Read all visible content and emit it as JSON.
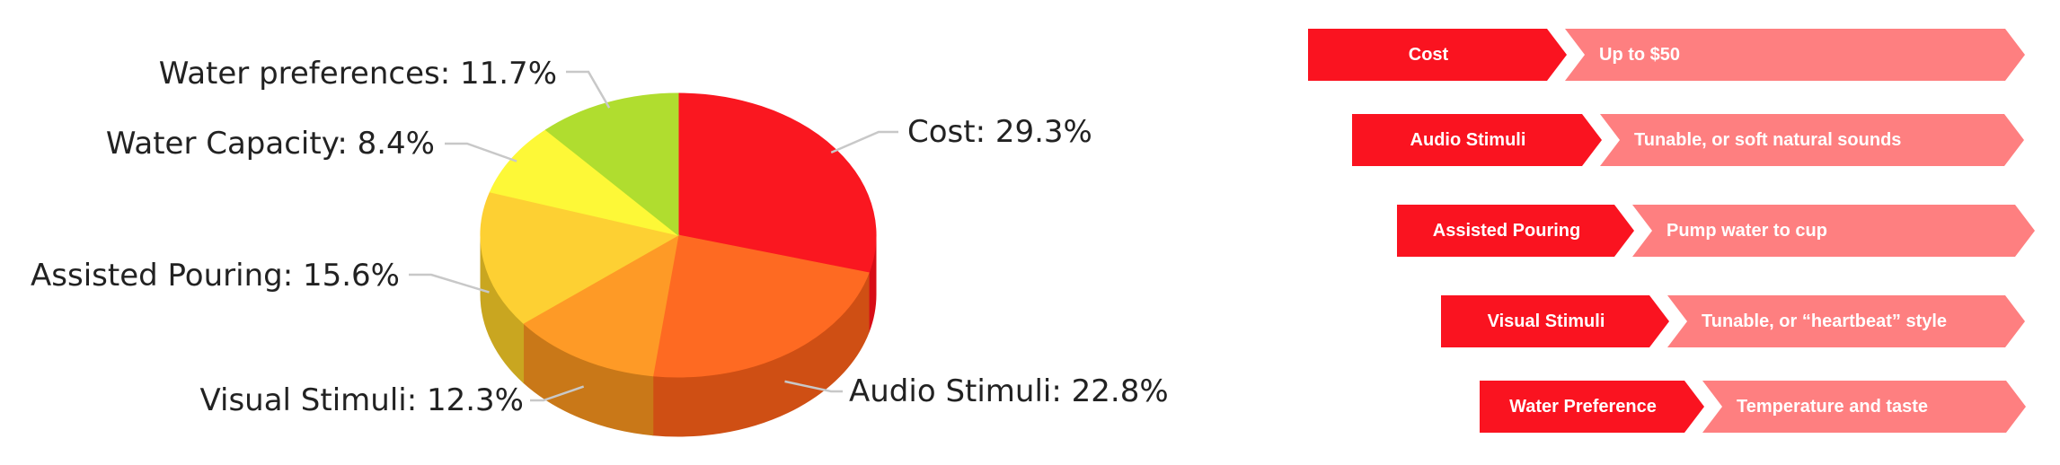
{
  "chart_data": {
    "type": "pie",
    "title": "",
    "slices": [
      {
        "label": "Cost",
        "value": 29.3,
        "display": "Cost: 29.3%",
        "color": "#fa1720",
        "side": "#d80c16"
      },
      {
        "label": "Audio Stimuli",
        "value": 22.8,
        "display": "Audio Stimuli: 22.8%",
        "color": "#fe6a22",
        "side": "#cf4f14"
      },
      {
        "label": "Visual Stimuli",
        "value": 12.3,
        "display": "Visual Stimuli: 12.3%",
        "color": "#fe9a26",
        "side": "#c97818"
      },
      {
        "label": "Assisted Pouring",
        "value": 15.6,
        "display": "Assisted Pouring: 15.6%",
        "color": "#fdd033",
        "side": "#c9a620"
      },
      {
        "label": "Water Capacity",
        "value": 8.4,
        "display": "Water Capacity: 8.4%",
        "color": "#fdf837",
        "side": "#cfcb22"
      },
      {
        "label": "Water preferences",
        "value": 11.7,
        "display": "Water preferences: 11.7%",
        "color": "#b0dd2f",
        "side": "#8eb31e"
      }
    ]
  },
  "requirements": [
    {
      "label": "Cost",
      "value": "Up to $50"
    },
    {
      "label": "Audio Stimuli",
      "value": "Tunable, or soft natural sounds"
    },
    {
      "label": "Assisted Pouring",
      "value": "Pump water to cup"
    },
    {
      "label": "Visual Stimuli",
      "value": "Tunable, or “heartbeat” style"
    },
    {
      "label": "Water Preference",
      "value": "Temperature and taste"
    }
  ],
  "colors": {
    "label_fill": "#fa1320",
    "value_fill": "#fe7f80"
  }
}
